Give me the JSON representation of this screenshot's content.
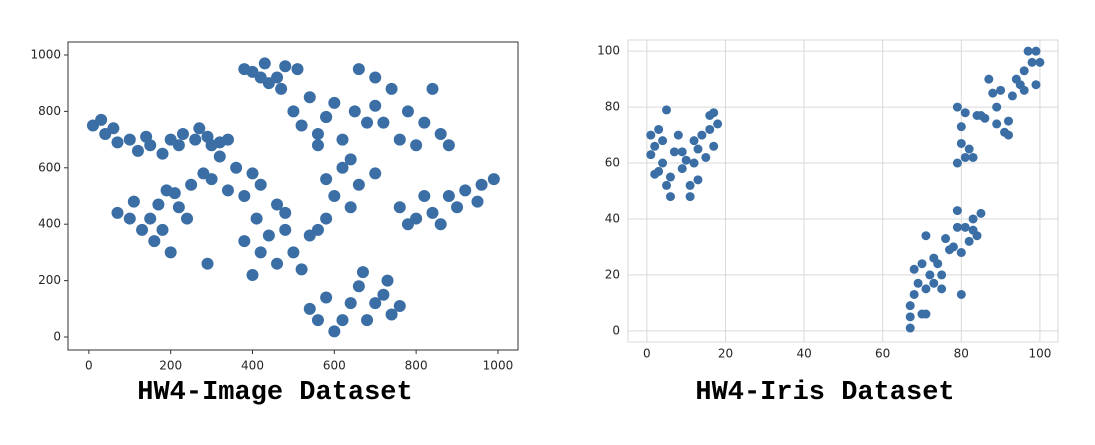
{
  "chart_data": [
    {
      "type": "scatter",
      "title": "HW4-Image Dataset",
      "color": "#3a6ea5",
      "grid": false,
      "xlim": [
        -51,
        1049
      ],
      "ylim": [
        -46,
        1046
      ],
      "xticks": [
        0,
        200,
        400,
        600,
        800,
        1000
      ],
      "yticks": [
        0,
        200,
        400,
        600,
        800,
        1000
      ],
      "x": [
        10,
        30,
        40,
        70,
        100,
        120,
        150,
        180,
        200,
        230,
        260,
        290,
        320,
        340,
        60,
        140,
        220,
        300,
        400,
        430,
        460,
        480,
        510,
        440,
        380,
        470,
        420,
        500,
        540,
        580,
        620,
        560,
        650,
        520,
        600,
        680,
        560,
        660,
        700,
        740,
        780,
        820,
        860,
        840,
        700,
        760,
        800,
        880,
        720,
        70,
        110,
        150,
        180,
        200,
        160,
        220,
        240,
        130,
        190,
        170,
        100,
        300,
        340,
        380,
        420,
        460,
        480,
        400,
        360,
        380,
        420,
        460,
        500,
        540,
        440,
        400,
        520,
        480,
        580,
        600,
        640,
        580,
        620,
        660,
        560,
        760,
        800,
        840,
        880,
        920,
        960,
        990,
        820,
        900,
        860,
        780,
        950,
        540,
        580,
        620,
        660,
        700,
        740,
        760,
        600,
        640,
        680,
        560,
        720,
        280,
        250,
        320,
        270,
        640,
        700,
        580,
        410,
        210,
        290,
        670,
        730
      ],
      "values": [
        750,
        770,
        720,
        690,
        700,
        660,
        680,
        650,
        700,
        720,
        700,
        710,
        690,
        700,
        740,
        710,
        680,
        680,
        940,
        970,
        920,
        960,
        950,
        900,
        950,
        880,
        920,
        800,
        850,
        780,
        700,
        720,
        800,
        750,
        830,
        760,
        680,
        950,
        920,
        880,
        800,
        760,
        720,
        880,
        820,
        700,
        680,
        680,
        760,
        440,
        480,
        420,
        380,
        300,
        340,
        460,
        420,
        380,
        520,
        470,
        420,
        560,
        520,
        500,
        540,
        470,
        440,
        580,
        600,
        340,
        300,
        260,
        300,
        360,
        360,
        220,
        240,
        380,
        560,
        500,
        460,
        420,
        600,
        540,
        380,
        460,
        420,
        440,
        500,
        520,
        540,
        560,
        500,
        460,
        400,
        400,
        480,
        100,
        140,
        60,
        180,
        120,
        80,
        110,
        20,
        120,
        60,
        60,
        150,
        580,
        540,
        640,
        740,
        630,
        580,
        780,
        420,
        510,
        260,
        230,
        200
      ]
    },
    {
      "type": "scatter",
      "title": "HW4-Iris Dataset",
      "color": "#3a6ea5",
      "grid": true,
      "xlim": [
        -4.8,
        104.6
      ],
      "ylim": [
        -4,
        104
      ],
      "xticks": [
        0,
        20,
        40,
        60,
        80,
        100
      ],
      "yticks": [
        0,
        20,
        40,
        60,
        80,
        100
      ],
      "x": [
        1,
        1,
        2,
        3,
        3,
        4,
        4,
        5,
        5,
        6,
        6,
        7,
        8,
        9,
        10,
        11,
        11,
        12,
        12,
        13,
        14,
        15,
        16,
        16,
        17,
        17,
        18,
        2,
        9,
        13,
        67,
        67,
        67,
        68,
        68,
        69,
        70,
        70,
        71,
        71,
        72,
        73,
        73,
        74,
        75,
        76,
        77,
        78,
        79,
        79,
        80,
        80,
        81,
        82,
        83,
        84,
        85,
        83,
        71,
        75,
        79,
        79,
        80,
        80,
        81,
        82,
        83,
        84,
        86,
        87,
        88,
        89,
        90,
        91,
        92,
        93,
        94,
        95,
        96,
        97,
        98,
        99,
        100,
        99,
        92,
        89,
        96,
        85,
        81
      ],
      "values": [
        63,
        70,
        66,
        72,
        57,
        68,
        60,
        79,
        52,
        55,
        48,
        64,
        70,
        58,
        61,
        52,
        48,
        68,
        60,
        65,
        70,
        62,
        77,
        72,
        66,
        78,
        74,
        56,
        64,
        54,
        1,
        5,
        9,
        13,
        22,
        17,
        6,
        24,
        15,
        34,
        20,
        26,
        17,
        24,
        20,
        33,
        29,
        30,
        43,
        37,
        28,
        13,
        37,
        32,
        40,
        34,
        42,
        36,
        6,
        15,
        80,
        60,
        67,
        73,
        62,
        65,
        62,
        77,
        76,
        90,
        85,
        80,
        86,
        71,
        75,
        84,
        90,
        88,
        93,
        100,
        96,
        100,
        96,
        88,
        70,
        74,
        86,
        77,
        78
      ]
    }
  ]
}
